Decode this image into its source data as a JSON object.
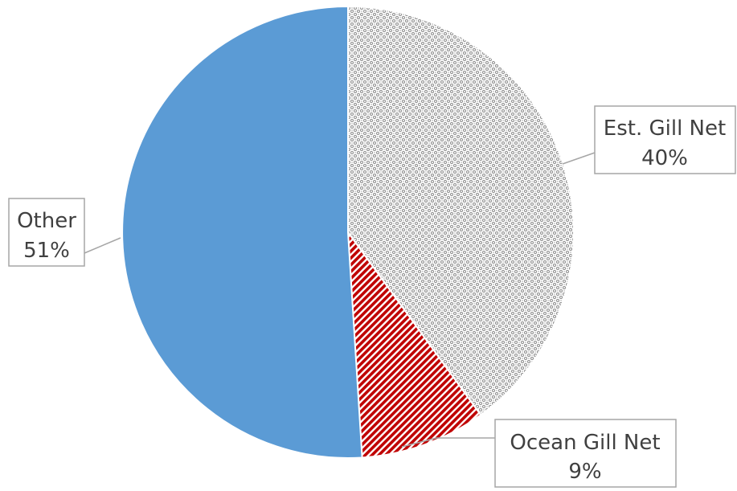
{
  "chart_data": {
    "type": "pie",
    "title": "",
    "slices": [
      {
        "label": "Est. Gill Net",
        "value": 40,
        "percent_label": "40%",
        "color": "#a6a6a6",
        "pattern": "dotted-grid"
      },
      {
        "label": "Ocean Gill Net",
        "value": 9,
        "percent_label": "9%",
        "color": "#c00000",
        "pattern": "diagonal-stripes"
      },
      {
        "label": "Other",
        "value": 51,
        "percent_label": "51%",
        "color": "#5b9bd5",
        "pattern": "solid"
      }
    ],
    "start_angle_deg": 0,
    "direction": "clockwise",
    "legend": "none",
    "data_labels": "callouts"
  }
}
